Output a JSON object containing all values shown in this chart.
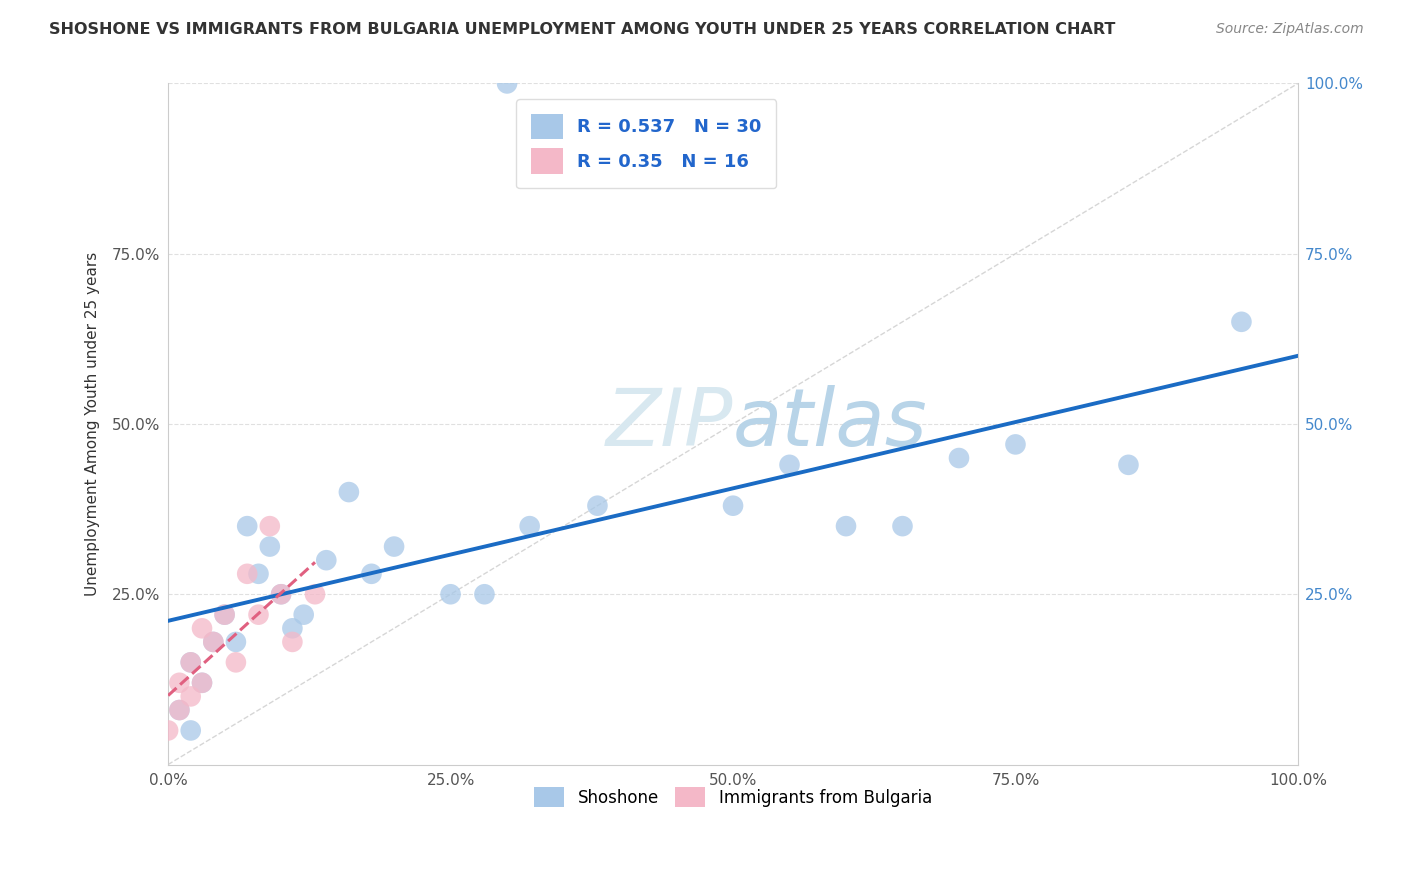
{
  "title": "SHOSHONE VS IMMIGRANTS FROM BULGARIA UNEMPLOYMENT AMONG YOUTH UNDER 25 YEARS CORRELATION CHART",
  "source": "Source: ZipAtlas.com",
  "ylabel": "Unemployment Among Youth under 25 years",
  "legend_label1": "Shoshone",
  "legend_label2": "Immigrants from Bulgaria",
  "R1": 0.537,
  "N1": 30,
  "R2": 0.35,
  "N2": 16,
  "color1": "#a8c8e8",
  "color2": "#f4b8c8",
  "trend1_color": "#1a6bc4",
  "trend2_color": "#e06080",
  "bg_color": "#ffffff",
  "watermark_color": "#d8e8f0",
  "shoshone_x": [
    0.3,
    0.01,
    0.02,
    0.02,
    0.03,
    0.04,
    0.05,
    0.06,
    0.07,
    0.08,
    0.09,
    0.1,
    0.11,
    0.12,
    0.14,
    0.16,
    0.18,
    0.2,
    0.25,
    0.28,
    0.32,
    0.38,
    0.5,
    0.55,
    0.6,
    0.65,
    0.7,
    0.75,
    0.85,
    0.95
  ],
  "shoshone_y": [
    1.0,
    0.08,
    0.15,
    0.05,
    0.12,
    0.18,
    0.22,
    0.18,
    0.35,
    0.28,
    0.32,
    0.25,
    0.2,
    0.22,
    0.3,
    0.4,
    0.28,
    0.32,
    0.25,
    0.25,
    0.35,
    0.38,
    0.38,
    0.44,
    0.35,
    0.35,
    0.45,
    0.47,
    0.44,
    0.65
  ],
  "bulgaria_x": [
    0.0,
    0.01,
    0.01,
    0.02,
    0.02,
    0.03,
    0.03,
    0.04,
    0.05,
    0.06,
    0.07,
    0.08,
    0.09,
    0.1,
    0.11,
    0.13
  ],
  "bulgaria_y": [
    0.05,
    0.08,
    0.12,
    0.1,
    0.15,
    0.12,
    0.2,
    0.18,
    0.22,
    0.15,
    0.28,
    0.22,
    0.35,
    0.25,
    0.18,
    0.25
  ],
  "xlim": [
    0.0,
    1.0
  ],
  "ylim": [
    0.0,
    1.0
  ],
  "xticks": [
    0.0,
    0.25,
    0.5,
    0.75,
    1.0
  ],
  "yticks": [
    0.0,
    0.25,
    0.5,
    0.75,
    1.0
  ],
  "xticklabels": [
    "0.0%",
    "25.0%",
    "50.0%",
    "75.0%",
    "100.0%"
  ],
  "left_yticklabels": [
    "",
    "25.0%",
    "50.0%",
    "75.0%",
    ""
  ],
  "right_yticklabels": [
    "",
    "25.0%",
    "50.0%",
    "75.0%",
    "100.0%"
  ]
}
